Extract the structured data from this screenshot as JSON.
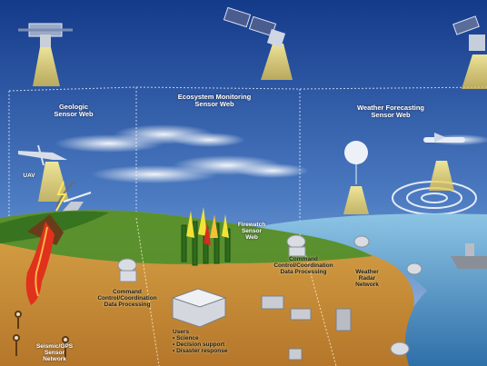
{
  "panels": {
    "geologic": {
      "title": "Geologic",
      "subtitle": "Sensor Web"
    },
    "ecosystem": {
      "title": "Ecosystem Monitoring",
      "subtitle": "Sensor Web"
    },
    "weather": {
      "title": "Weather Forecasting",
      "subtitle": "Sensor Web"
    }
  },
  "labels": {
    "uav": "UAV",
    "fire": {
      "line1": "Firewatch",
      "line2": "Sensor",
      "line3": "Web"
    },
    "command": {
      "line1": "Command",
      "line2": "Control/Coordination",
      "line3": "Data Processing"
    },
    "central": {
      "line1": "Command",
      "line2": "Control/Coordination",
      "line3": "Data Processing"
    },
    "radar": {
      "line1": "Weather",
      "line2": "Radar",
      "line3": "Network"
    },
    "seismic": {
      "line1": "Seismic/GPS",
      "line2": "Sensor",
      "line3": "Network"
    },
    "users": {
      "title": "Users",
      "items": [
        "• Science",
        "• Decision support",
        "• Disaster response"
      ]
    }
  },
  "colors": {
    "sky_top": "#173d8e",
    "sky_bottom": "#6f9bd2",
    "land": "#c9912f",
    "grass": "#4d8f2a",
    "ocean": "#5aa6cf"
  }
}
